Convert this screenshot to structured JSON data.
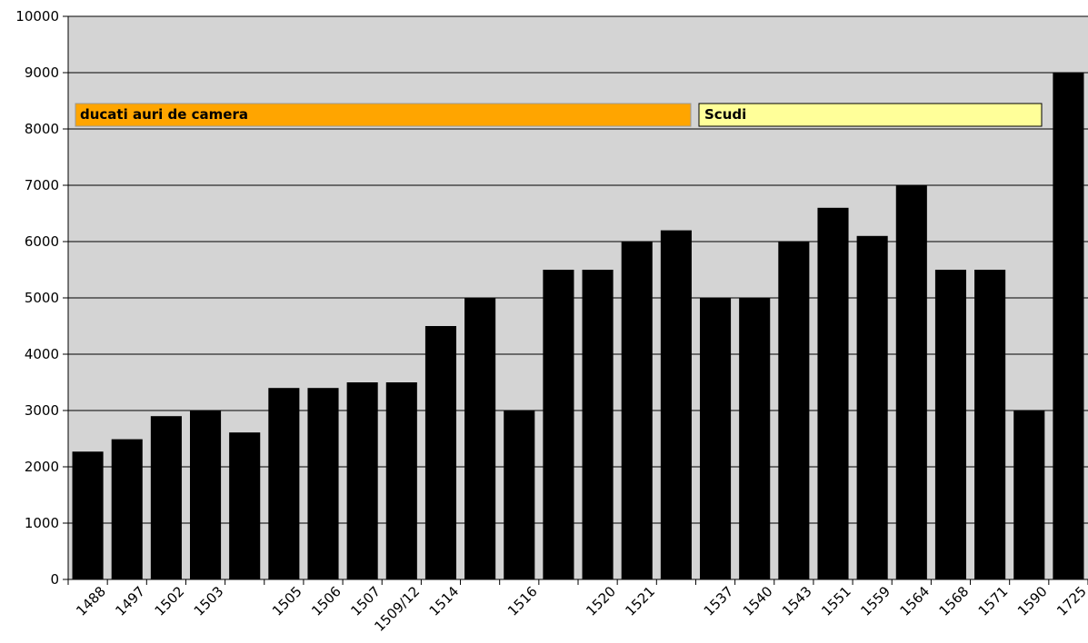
{
  "chart_data": {
    "type": "bar",
    "categories": [
      "1488",
      "1497",
      "1502",
      "1503",
      "",
      "1505",
      "1506",
      "1507",
      "1509/12",
      "1514",
      "",
      "1516",
      "",
      "1520",
      "1521",
      "",
      "1537",
      "1540",
      "1543",
      "1551",
      "1559",
      "1564",
      "1568",
      "1571",
      "1590",
      "1725"
    ],
    "bar_values": [
      2270,
      2490,
      2900,
      3000,
      2610,
      3400,
      3400,
      3500,
      3500,
      4500,
      5000,
      3000,
      5500,
      5500,
      6000,
      6200,
      5000,
      5000,
      6000,
      6600,
      6100,
      7000,
      5500,
      5500,
      3000,
      9000
    ],
    "ylim": [
      0,
      10000
    ],
    "yticks": [
      0,
      1000,
      2000,
      3000,
      4000,
      5000,
      6000,
      7000,
      8000,
      9000,
      10000
    ],
    "grid": true,
    "plot_background": "#d4d4d4",
    "bar_color": "#000000",
    "period_bands": [
      {
        "label": "ducati auri de camera",
        "color": "#ffa500"
      },
      {
        "label": "Scudi",
        "color": "#ffff99"
      }
    ]
  }
}
